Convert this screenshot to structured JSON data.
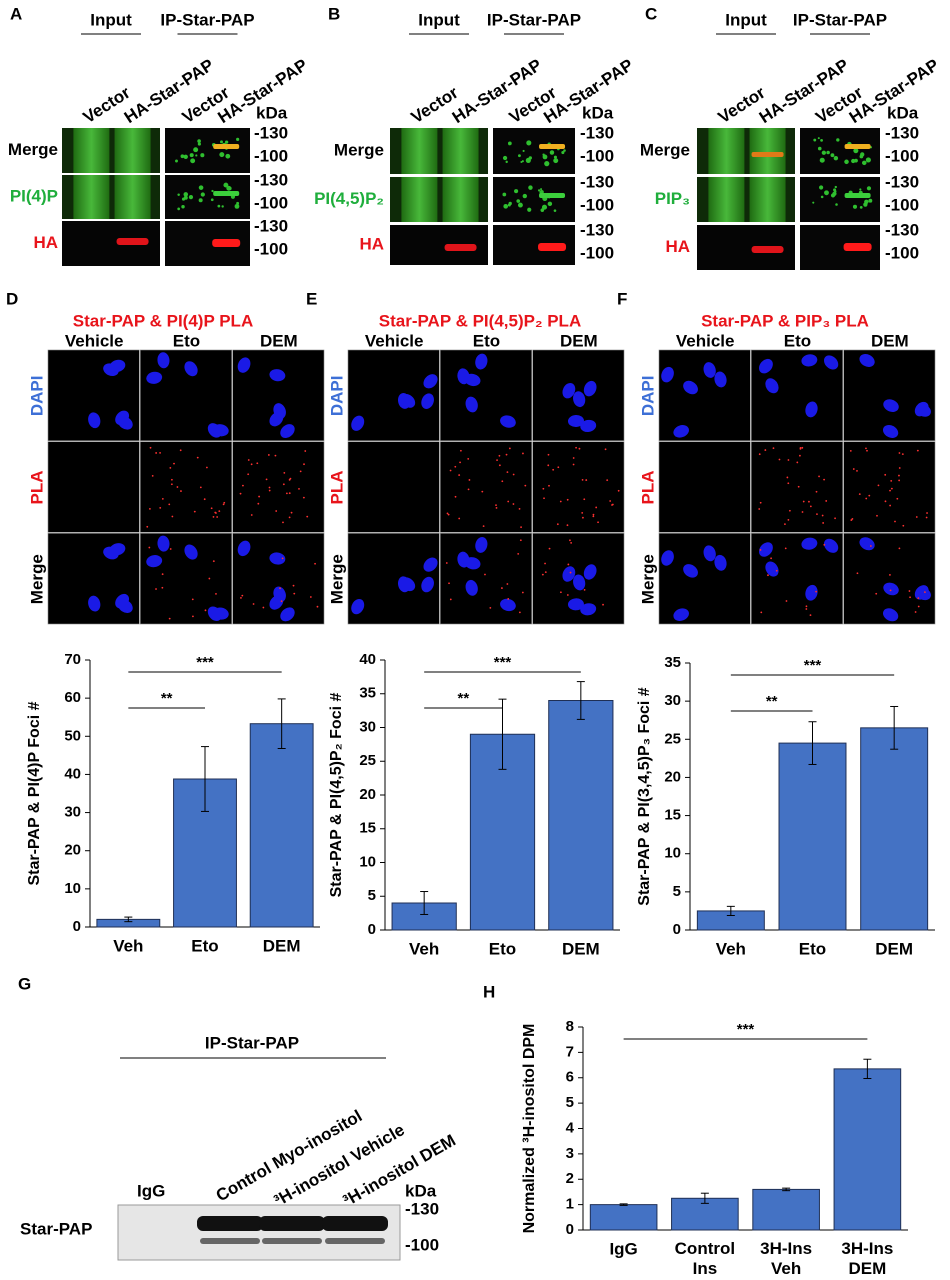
{
  "blots": [
    {
      "letter": "A",
      "groups": [
        "Input",
        "IP-Star-PAP"
      ],
      "lanes": [
        "Vector",
        "HA-Star-PAP",
        "Vector",
        "HA-Star-PAP"
      ],
      "unit": "kDa",
      "rows": [
        {
          "label": "Merge",
          "markers": [
            "-130",
            "-100"
          ]
        },
        {
          "label": "PI(4)P",
          "markers": [
            "-130",
            "-100"
          ]
        },
        {
          "label": "HA",
          "markers": [
            "-130",
            "-100"
          ]
        }
      ]
    },
    {
      "letter": "B",
      "groups": [
        "Input",
        "IP-Star-PAP"
      ],
      "lanes": [
        "Vector",
        "HA-Star-PAP",
        "Vector",
        "HA-Star-PAP"
      ],
      "unit": "kDa",
      "rows": [
        {
          "label": "Merge",
          "markers": [
            "-130",
            "-100"
          ]
        },
        {
          "label": "PI(4,5)P₂",
          "markers": [
            "-130",
            "-100"
          ]
        },
        {
          "label": "HA",
          "markers": [
            "-130",
            "-100"
          ]
        }
      ]
    },
    {
      "letter": "C",
      "groups": [
        "Input",
        "IP-Star-PAP"
      ],
      "lanes": [
        "Vector",
        "HA-Star-PAP",
        "Vector",
        "HA-Star-PAP"
      ],
      "unit": "kDa",
      "rows": [
        {
          "label": "Merge",
          "markers": [
            "-130",
            "-100"
          ]
        },
        {
          "label": "PIP₃",
          "markers": [
            "-130",
            "-100"
          ]
        },
        {
          "label": "HA",
          "markers": [
            "-130",
            "-100"
          ]
        }
      ]
    }
  ],
  "micro": [
    {
      "letter": "D",
      "title": "Star-PAP & PI(4)P PLA",
      "columns": [
        "Vehicle",
        "Eto",
        "DEM"
      ],
      "rows": [
        "DAPI",
        "PLA",
        "Merge"
      ]
    },
    {
      "letter": "E",
      "title": "Star-PAP & PI(4,5)P₂ PLA",
      "columns": [
        "Vehicle",
        "Eto",
        "DEM"
      ],
      "rows": [
        "DAPI",
        "PLA",
        "Merge"
      ]
    },
    {
      "letter": "F",
      "title": "Star-PAP & PIP₃ PLA",
      "columns": [
        "Vehicle",
        "Eto",
        "DEM"
      ],
      "rows": [
        "DAPI",
        "PLA",
        "Merge"
      ]
    }
  ],
  "gel": {
    "letter": "G",
    "group": "IP-Star-PAP",
    "lanes": [
      "IgG",
      "Control Myo-inositol",
      "³H-inositol Vehicle",
      "³H-inositol DEM"
    ],
    "unit": "kDa",
    "row": "Star-PAP",
    "markers": [
      "-130",
      "-100"
    ]
  },
  "chart_data": [
    {
      "type": "bar",
      "ylabel": "Star-PAP & PI(4)P Foci #",
      "categories": [
        "Veh",
        "Eto",
        "DEM"
      ],
      "values": [
        2,
        38.8,
        53.3
      ],
      "errors": [
        0.6,
        8.5,
        6.5
      ],
      "color": "#4472c4",
      "ylim": [
        0,
        70
      ],
      "yticks": [
        0,
        10,
        20,
        30,
        40,
        50,
        60,
        70
      ],
      "annotations": [
        {
          "text": "**",
          "from": "Veh",
          "to": "Eto"
        },
        {
          "text": "***",
          "from": "Veh",
          "to": "DEM"
        }
      ]
    },
    {
      "type": "bar",
      "ylabel": "Star-PAP & PI(4,5)P₂ Foci #",
      "categories": [
        "Veh",
        "Eto",
        "DEM"
      ],
      "values": [
        4,
        29,
        34
      ],
      "errors": [
        1.7,
        5.2,
        2.8
      ],
      "color": "#4472c4",
      "ylim": [
        0,
        40
      ],
      "yticks": [
        0,
        5,
        10,
        15,
        20,
        25,
        30,
        35,
        40
      ],
      "annotations": [
        {
          "text": "**",
          "from": "Veh",
          "to": "Eto"
        },
        {
          "text": "***",
          "from": "Veh",
          "to": "DEM"
        }
      ]
    },
    {
      "type": "bar",
      "ylabel": "Star-PAP & PI(3,4,5)P₃ Foci #",
      "categories": [
        "Veh",
        "Eto",
        "DEM"
      ],
      "values": [
        2.5,
        24.5,
        26.5
      ],
      "errors": [
        0.6,
        2.8,
        2.8
      ],
      "color": "#4472c4",
      "ylim": [
        0,
        35
      ],
      "yticks": [
        0,
        5,
        10,
        15,
        20,
        25,
        30,
        35
      ],
      "annotations": [
        {
          "text": "**",
          "from": "Veh",
          "to": "Eto"
        },
        {
          "text": "***",
          "from": "Veh",
          "to": "DEM"
        }
      ]
    },
    {
      "type": "bar",
      "panel": "H",
      "ylabel": "Normalized ³H-inositol DPM",
      "categories": [
        "IgG",
        "Control Ins",
        "3H-Ins Veh",
        "3H-Ins DEM"
      ],
      "values": [
        1,
        1.25,
        1.6,
        6.35
      ],
      "errors": [
        0.03,
        0.2,
        0.05,
        0.38
      ],
      "color": "#4472c4",
      "ylim": [
        0,
        8
      ],
      "yticks": [
        0,
        1,
        2,
        3,
        4,
        5,
        6,
        7,
        8
      ],
      "annotations": [
        {
          "text": "***",
          "from": "IgG",
          "to": "3H-Ins DEM"
        }
      ]
    }
  ]
}
